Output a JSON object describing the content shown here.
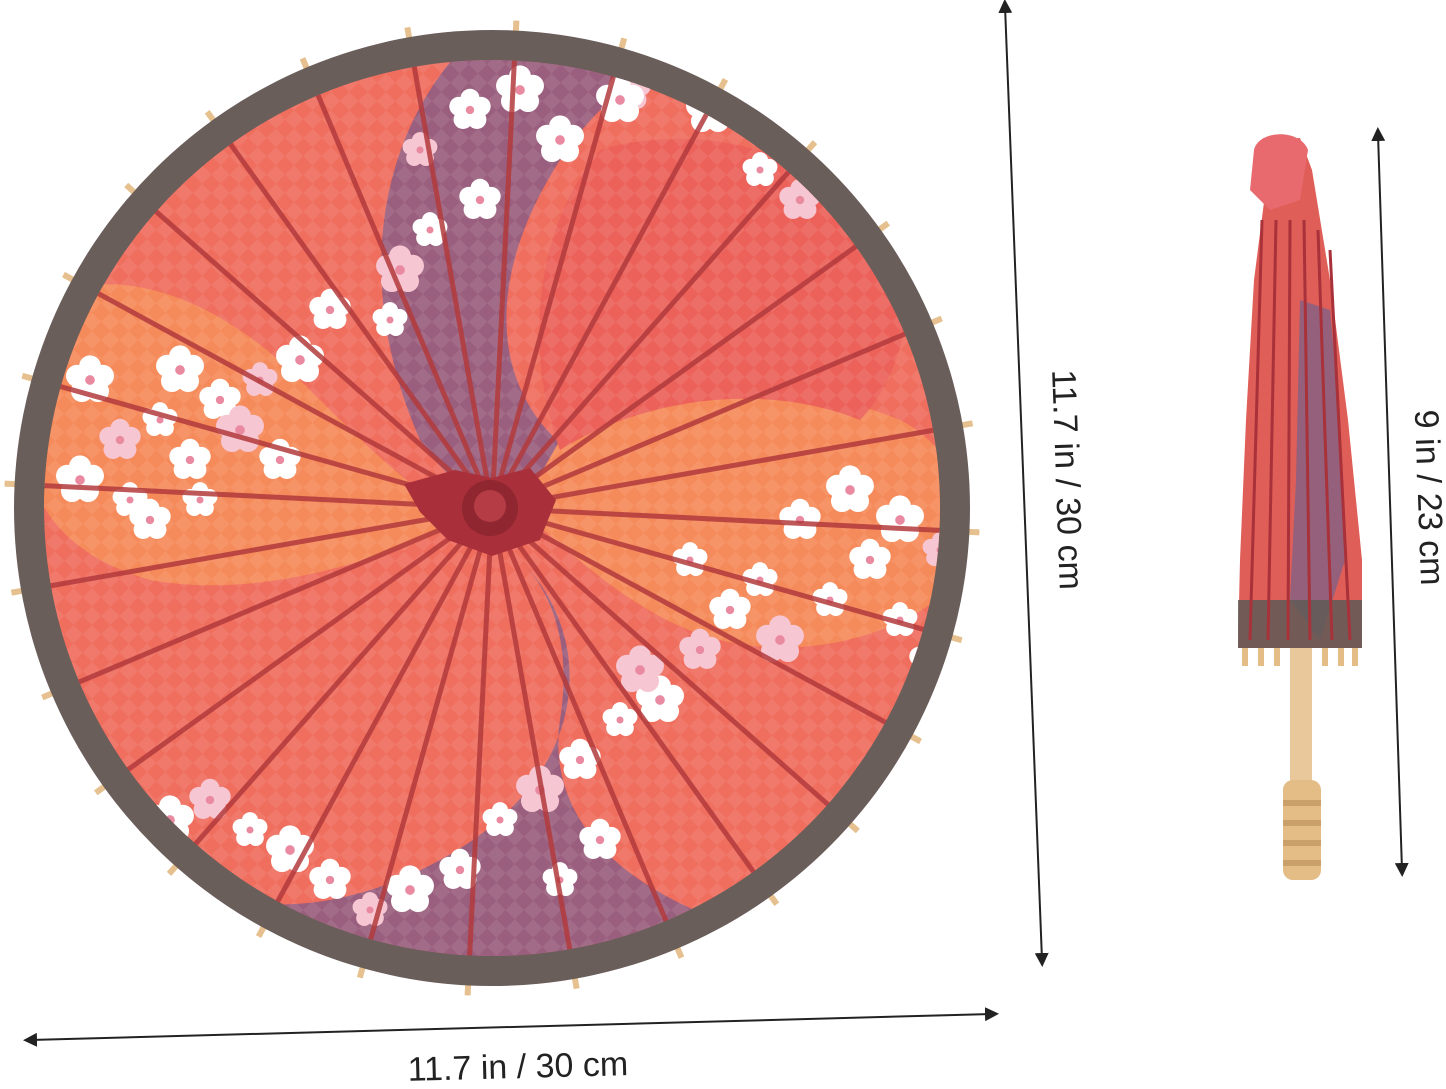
{
  "product": {
    "open_umbrella": {
      "canopy_color": "#ef6e5e",
      "border_color": "#6a5e5a",
      "accent_purple": "#9a5f7e",
      "accent_orange": "#f58a5a",
      "rib_color": "#b03a3a",
      "center_color": "#b8343a",
      "width_label": "11.7 in / 30 cm",
      "height_label": "11.7 in / 30 cm"
    },
    "closed_umbrella": {
      "canopy_color": "#df5e58",
      "handle_color": "#e9c99c",
      "length_label": "9 in / 23 cm"
    },
    "arrow_color": "#222222"
  }
}
